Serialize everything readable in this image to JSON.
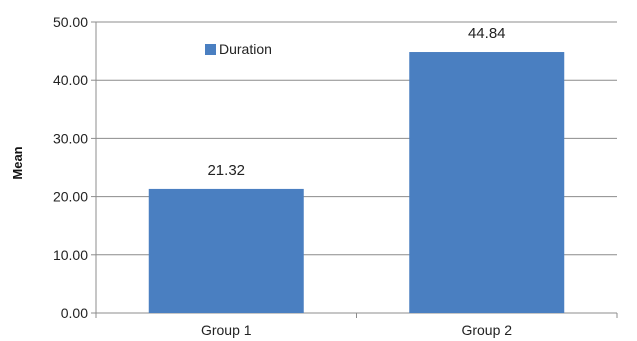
{
  "chart_data": {
    "type": "bar",
    "categories": [
      "Group 1",
      "Group 2"
    ],
    "series": [
      {
        "name": "Duration",
        "values": [
          21.32,
          44.84
        ],
        "color": "#4a7fc1"
      }
    ],
    "data_labels": [
      "21.32",
      "44.84"
    ],
    "ylabel": "Mean",
    "xlabel": "",
    "ylim": [
      0,
      50
    ],
    "yticks": [
      "0.00",
      "10.00",
      "20.00",
      "30.00",
      "40.00",
      "50.00"
    ],
    "grid": true,
    "legend_position": "top-left inside plot",
    "axis_color": "#8c8c8c"
  }
}
